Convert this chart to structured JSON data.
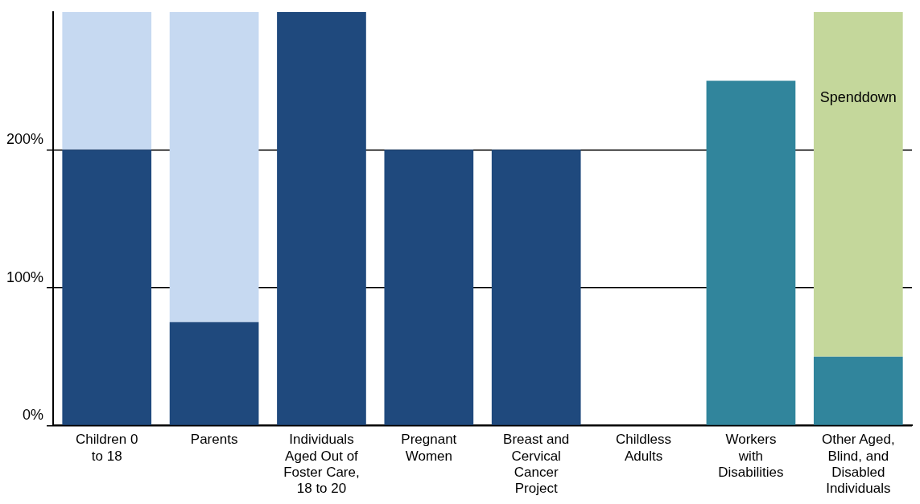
{
  "chart_data": {
    "type": "bar",
    "stacked": true,
    "categories": [
      "Children 0 to 18",
      "Parents",
      "Individuals Aged Out of Foster Care, 18 to 20",
      "Pregnant Women",
      "Breast and Cervical Cancer Project",
      "Childless Adults",
      "Workers with Disabilities",
      "Other Aged, Blind, and Disabled Individuals"
    ],
    "series": [
      {
        "color": "#1f497d",
        "values": [
          200,
          75,
          300,
          200,
          200,
          null,
          null,
          null
        ]
      },
      {
        "color": "#31859c",
        "values": [
          null,
          null,
          null,
          null,
          null,
          null,
          250,
          50
        ]
      },
      {
        "color": "#c6d9f1",
        "values": [
          100,
          225,
          null,
          null,
          null,
          null,
          null,
          null
        ]
      },
      {
        "color": "#c4d79b",
        "values": [
          null,
          null,
          null,
          null,
          null,
          null,
          null,
          250
        ]
      }
    ],
    "ylim": [
      0,
      300
    ],
    "yticks": [
      {
        "value": 0,
        "label": "0%"
      },
      {
        "value": 100,
        "label": "100%"
      },
      {
        "value": 200,
        "label": "200%"
      }
    ],
    "grid": "y",
    "legend": false,
    "annotations": [
      "Spenddown"
    ]
  }
}
